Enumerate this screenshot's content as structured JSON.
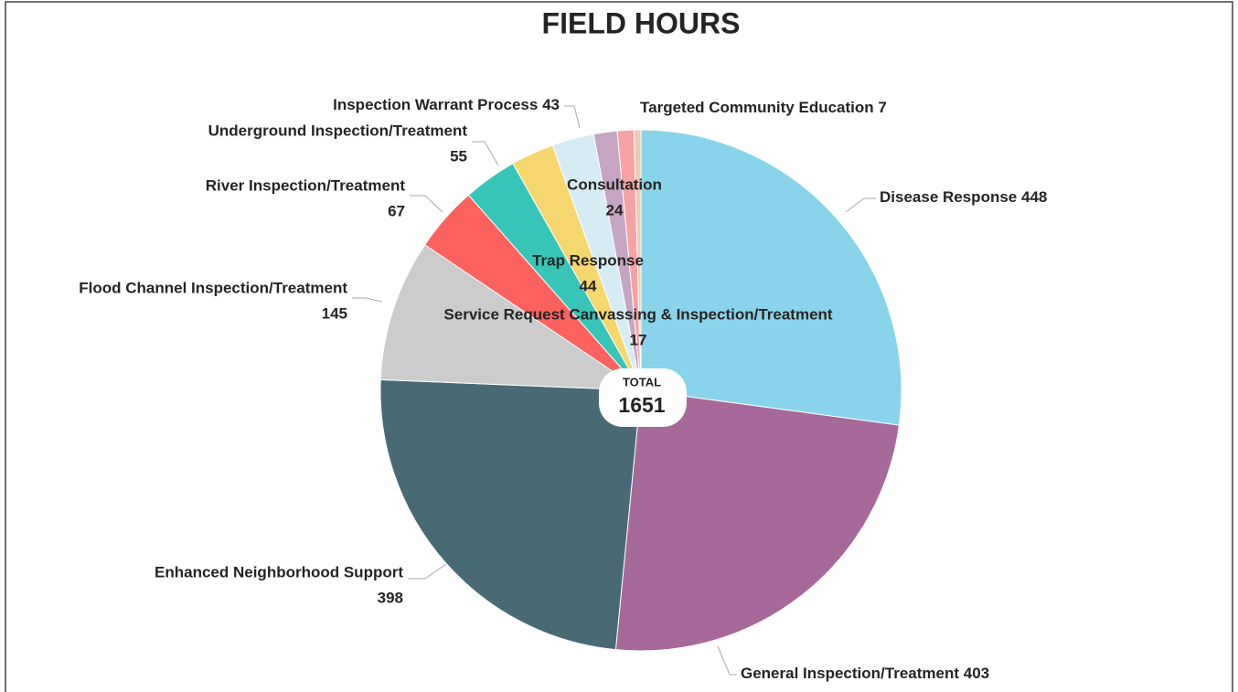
{
  "chart_data": {
    "type": "pie",
    "title": "FIELD HOURS",
    "categories": [
      "Disease Response",
      "General Inspection/Treatment",
      "Enhanced Neighborhood Support",
      "Flood Channel Inspection/Treatment",
      "River Inspection/Treatment",
      "Underground Inspection/Treatment",
      "Trap Response",
      "Inspection Warrant Process",
      "Consultation",
      "Service Request Canvassing & Inspection/Treatment",
      "Targeted Community Education"
    ],
    "values": [
      448,
      403,
      398,
      145,
      67,
      55,
      44,
      43,
      24,
      17,
      7
    ],
    "colors": [
      "#8ad4eb",
      "#a66999",
      "#476a75",
      "#cccccc",
      "#fd625e",
      "#36c5b8",
      "#f5d76e",
      "#d5ecf5",
      "#c6a5c4",
      "#f6a2a4",
      "#f3c8b5"
    ],
    "total_label": "TOTAL",
    "total": 1651
  }
}
